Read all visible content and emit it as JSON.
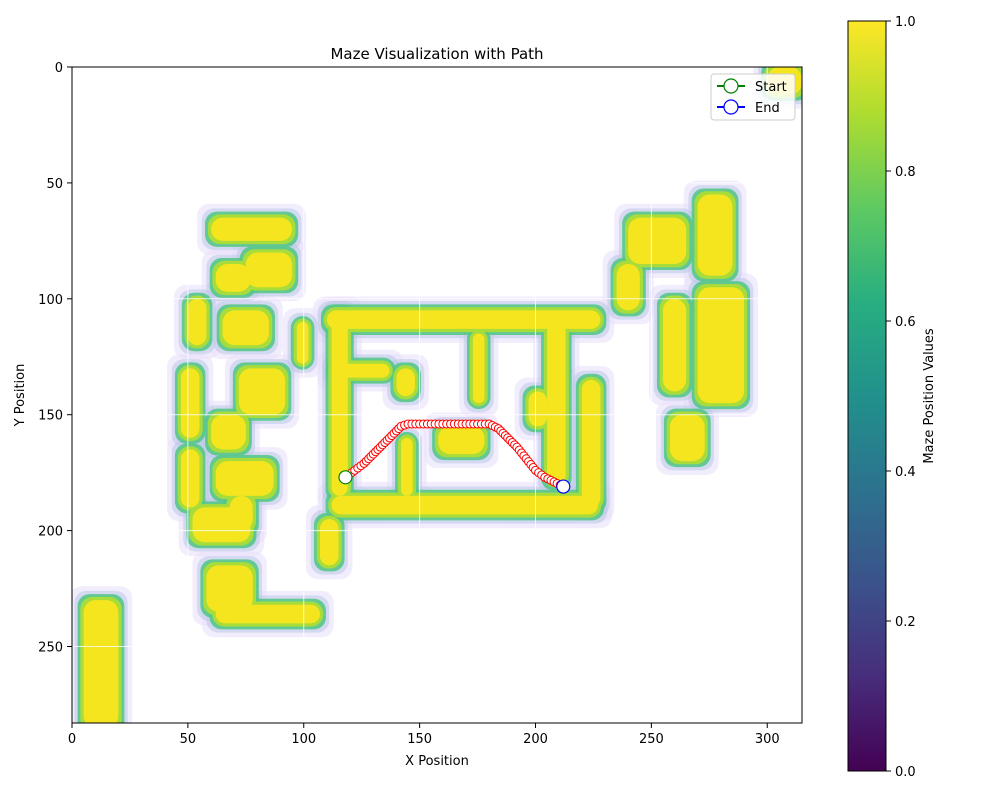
{
  "chart_data": {
    "type": "heatmap",
    "title": "Maze Visualization with Path",
    "xlabel": "X Position",
    "ylabel": "Y Position",
    "xlim": [
      0,
      315
    ],
    "ylim": [
      283,
      0
    ],
    "xticks": [
      0,
      50,
      100,
      150,
      200,
      250,
      300
    ],
    "yticks": [
      0,
      50,
      100,
      150,
      200,
      250
    ],
    "grid": true,
    "colormap": "viridis",
    "colorbar": {
      "label": "Maze Position Values",
      "range": [
        0,
        1
      ],
      "ticks": [
        "0.0",
        "0.2",
        "0.4",
        "0.6",
        "0.8",
        "1.0"
      ]
    },
    "legend": {
      "placement": "top-right",
      "entries": [
        {
          "label": "Start",
          "line_color": "#008000",
          "marker_edge": "#008000",
          "marker_face": "#ffffff"
        },
        {
          "label": "End",
          "line_color": "#0000ff",
          "marker_edge": "#0000ff",
          "marker_face": "#ffffff"
        }
      ]
    },
    "maze_blobs": [
      {
        "x": 5,
        "y": 230,
        "w": 15,
        "h": 55
      },
      {
        "x": 300,
        "y": 0,
        "w": 15,
        "h": 12
      },
      {
        "x": 50,
        "y": 100,
        "w": 8,
        "h": 20
      },
      {
        "x": 47,
        "y": 130,
        "w": 8,
        "h": 30
      },
      {
        "x": 47,
        "y": 165,
        "w": 8,
        "h": 25
      },
      {
        "x": 52,
        "y": 190,
        "w": 25,
        "h": 15
      },
      {
        "x": 60,
        "y": 65,
        "w": 35,
        "h": 10
      },
      {
        "x": 62,
        "y": 85,
        "w": 15,
        "h": 12
      },
      {
        "x": 75,
        "y": 80,
        "w": 20,
        "h": 15
      },
      {
        "x": 65,
        "y": 105,
        "w": 20,
        "h": 15
      },
      {
        "x": 72,
        "y": 130,
        "w": 20,
        "h": 20
      },
      {
        "x": 60,
        "y": 150,
        "w": 15,
        "h": 15
      },
      {
        "x": 62,
        "y": 170,
        "w": 25,
        "h": 15
      },
      {
        "x": 68,
        "y": 185,
        "w": 10,
        "h": 15
      },
      {
        "x": 97,
        "y": 110,
        "w": 5,
        "h": 18
      },
      {
        "x": 58,
        "y": 215,
        "w": 20,
        "h": 20
      },
      {
        "x": 62,
        "y": 232,
        "w": 45,
        "h": 8
      },
      {
        "x": 107,
        "y": 195,
        "w": 8,
        "h": 20
      },
      {
        "x": 110,
        "y": 105,
        "w": 118,
        "h": 8
      },
      {
        "x": 112,
        "y": 105,
        "w": 7,
        "h": 80
      },
      {
        "x": 112,
        "y": 128,
        "w": 25,
        "h": 6
      },
      {
        "x": 112,
        "y": 185,
        "w": 115,
        "h": 8
      },
      {
        "x": 140,
        "y": 130,
        "w": 8,
        "h": 12
      },
      {
        "x": 142,
        "y": 160,
        "w": 5,
        "h": 25
      },
      {
        "x": 158,
        "y": 155,
        "w": 20,
        "h": 12
      },
      {
        "x": 173,
        "y": 115,
        "w": 5,
        "h": 30
      },
      {
        "x": 197,
        "y": 140,
        "w": 8,
        "h": 15
      },
      {
        "x": 205,
        "y": 110,
        "w": 8,
        "h": 70
      },
      {
        "x": 220,
        "y": 135,
        "w": 8,
        "h": 55
      },
      {
        "x": 235,
        "y": 85,
        "w": 10,
        "h": 20
      },
      {
        "x": 240,
        "y": 65,
        "w": 25,
        "h": 20
      },
      {
        "x": 255,
        "y": 100,
        "w": 10,
        "h": 40
      },
      {
        "x": 270,
        "y": 55,
        "w": 15,
        "h": 35
      },
      {
        "x": 270,
        "y": 95,
        "w": 20,
        "h": 50
      },
      {
        "x": 258,
        "y": 150,
        "w": 15,
        "h": 20
      }
    ],
    "path": {
      "start": {
        "x": 118,
        "y": 177
      },
      "end": {
        "x": 212,
        "y": 181
      },
      "points": [
        [
          118,
          177
        ],
        [
          122,
          174
        ],
        [
          126,
          171
        ],
        [
          130,
          167
        ],
        [
          134,
          163
        ],
        [
          138,
          159
        ],
        [
          142,
          155
        ],
        [
          145,
          154
        ],
        [
          150,
          154
        ],
        [
          155,
          154
        ],
        [
          160,
          154
        ],
        [
          165,
          154
        ],
        [
          170,
          154
        ],
        [
          175,
          154
        ],
        [
          180,
          154
        ],
        [
          184,
          156
        ],
        [
          188,
          160
        ],
        [
          192,
          164
        ],
        [
          196,
          169
        ],
        [
          200,
          174
        ],
        [
          204,
          177
        ],
        [
          208,
          179
        ],
        [
          212,
          181
        ]
      ]
    }
  }
}
